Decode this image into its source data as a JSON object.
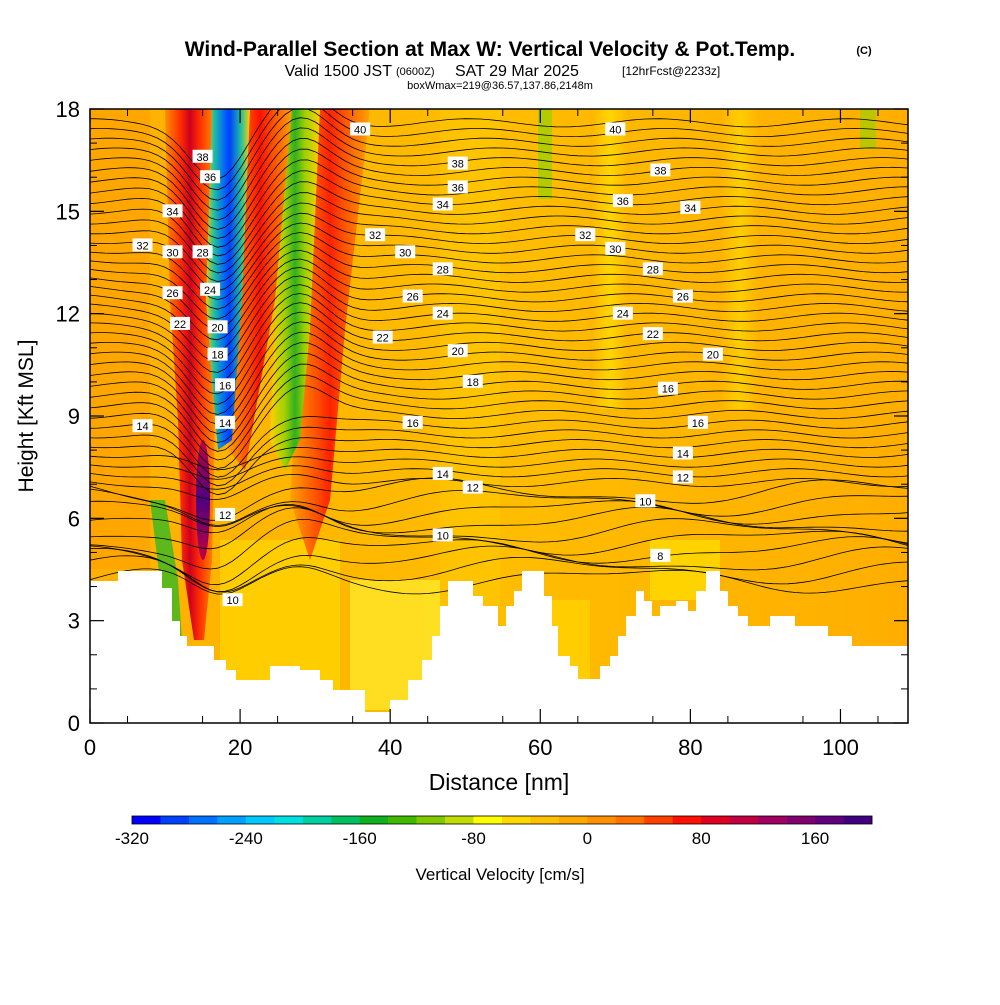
{
  "header": {
    "title": "Wind-Parallel Section at Max W: Vertical Velocity & Pot.Temp.",
    "copyright": "(C)",
    "valid_prefix": "Valid 1500 JST",
    "valid_zulu": "(0600Z)",
    "valid_date": "SAT 29 Mar 2025",
    "valid_fcst": "[12hrFcst@2233z]",
    "boxwmax": "boxWmax=219@36.57,137.86,2148m"
  },
  "chart_data": {
    "type": "heatmap",
    "xlabel": "Distance [nm]",
    "ylabel": "Height [Kft MSL]",
    "xlim": [
      0,
      109
    ],
    "ylim": [
      0,
      18
    ],
    "x_ticks": [
      "0",
      "20",
      "40",
      "60",
      "80",
      "100"
    ],
    "y_ticks": [
      "0",
      "3",
      "6",
      "9",
      "12",
      "15",
      "18"
    ],
    "colorbar": {
      "label": "Vertical Velocity [cm/s]",
      "min": -320,
      "max": 200,
      "step": 20,
      "tick_labels": [
        "-320",
        "-240",
        "-160",
        "-80",
        "0",
        "80",
        "160"
      ],
      "colors": [
        "#0000ff",
        "#0040ff",
        "#0070ff",
        "#00a0ff",
        "#00c8ff",
        "#00e0e0",
        "#00d0a0",
        "#00c060",
        "#10b020",
        "#40b800",
        "#80c800",
        "#c0dc00",
        "#ffff00",
        "#ffd800",
        "#ffc000",
        "#ffa800",
        "#ff9000",
        "#ff7000",
        "#ff4000",
        "#ff1000",
        "#e00020",
        "#c00040",
        "#a00060",
        "#800070",
        "#600080",
        "#400080"
      ]
    },
    "theta_contour_labels": [
      {
        "value": "40",
        "x": 36,
        "y": 17.4
      },
      {
        "value": "40",
        "x": 70,
        "y": 17.4
      },
      {
        "value": "38",
        "x": 15,
        "y": 16.6
      },
      {
        "value": "38",
        "x": 49,
        "y": 16.4
      },
      {
        "value": "38",
        "x": 76,
        "y": 16.2
      },
      {
        "value": "36",
        "x": 16,
        "y": 16.0
      },
      {
        "value": "36",
        "x": 49,
        "y": 15.7
      },
      {
        "value": "36",
        "x": 71,
        "y": 15.3
      },
      {
        "value": "34",
        "x": 11,
        "y": 15.0
      },
      {
        "value": "34",
        "x": 47,
        "y": 15.2
      },
      {
        "value": "34",
        "x": 80,
        "y": 15.1
      },
      {
        "value": "32",
        "x": 7,
        "y": 14.0
      },
      {
        "value": "32",
        "x": 38,
        "y": 14.3
      },
      {
        "value": "32",
        "x": 66,
        "y": 14.3
      },
      {
        "value": "30",
        "x": 11,
        "y": 13.8
      },
      {
        "value": "30",
        "x": 42,
        "y": 13.8
      },
      {
        "value": "30",
        "x": 70,
        "y": 13.9
      },
      {
        "value": "28",
        "x": 15,
        "y": 13.8
      },
      {
        "value": "28",
        "x": 47,
        "y": 13.3
      },
      {
        "value": "28",
        "x": 75,
        "y": 13.3
      },
      {
        "value": "26",
        "x": 11,
        "y": 12.6
      },
      {
        "value": "26",
        "x": 43,
        "y": 12.5
      },
      {
        "value": "26",
        "x": 79,
        "y": 12.5
      },
      {
        "value": "24",
        "x": 16,
        "y": 12.7
      },
      {
        "value": "24",
        "x": 47,
        "y": 12.0
      },
      {
        "value": "24",
        "x": 71,
        "y": 12.0
      },
      {
        "value": "22",
        "x": 12,
        "y": 11.7
      },
      {
        "value": "22",
        "x": 39,
        "y": 11.3
      },
      {
        "value": "22",
        "x": 75,
        "y": 11.4
      },
      {
        "value": "20",
        "x": 17,
        "y": 11.6
      },
      {
        "value": "20",
        "x": 49,
        "y": 10.9
      },
      {
        "value": "20",
        "x": 83,
        "y": 10.8
      },
      {
        "value": "18",
        "x": 17,
        "y": 10.8
      },
      {
        "value": "18",
        "x": 51,
        "y": 10.0
      },
      {
        "value": "16",
        "x": 18,
        "y": 9.9
      },
      {
        "value": "16",
        "x": 43,
        "y": 8.8
      },
      {
        "value": "16",
        "x": 77,
        "y": 9.8
      },
      {
        "value": "16",
        "x": 81,
        "y": 8.8
      },
      {
        "value": "14",
        "x": 7,
        "y": 8.7
      },
      {
        "value": "14",
        "x": 18,
        "y": 8.8
      },
      {
        "value": "14",
        "x": 47,
        "y": 7.3
      },
      {
        "value": "14",
        "x": 79,
        "y": 7.9
      },
      {
        "value": "12",
        "x": 18,
        "y": 6.1
      },
      {
        "value": "12",
        "x": 51,
        "y": 6.9
      },
      {
        "value": "12",
        "x": 79,
        "y": 7.2
      },
      {
        "value": "10",
        "x": 19,
        "y": 3.6
      },
      {
        "value": "10",
        "x": 47,
        "y": 5.5
      },
      {
        "value": "10",
        "x": 74,
        "y": 6.5
      },
      {
        "value": "8",
        "x": 76,
        "y": 4.9
      }
    ]
  }
}
